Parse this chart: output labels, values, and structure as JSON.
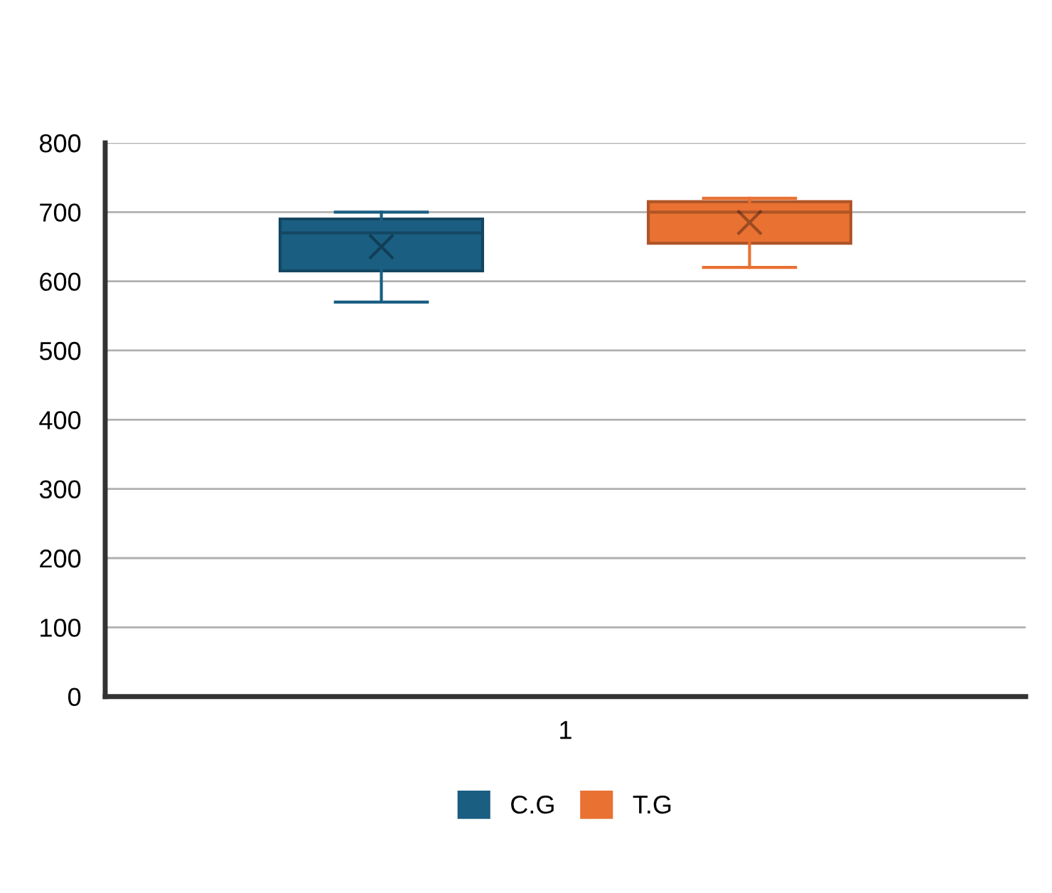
{
  "chart_data": {
    "type": "box",
    "categories": [
      "1"
    ],
    "series": [
      {
        "name": "C.G",
        "color": "#1a5e82",
        "boxes": [
          {
            "low": 570,
            "q1": 615,
            "median": 670,
            "q3": 690,
            "high": 700,
            "mean": 650
          }
        ]
      },
      {
        "name": "T.G",
        "color": "#e97132",
        "boxes": [
          {
            "low": 620,
            "q1": 655,
            "median": 700,
            "q3": 715,
            "high": 720,
            "mean": 685
          }
        ]
      }
    ],
    "ylim": [
      0,
      800
    ],
    "yticks": [
      0,
      100,
      200,
      300,
      400,
      500,
      600,
      700,
      800
    ],
    "grid": "y",
    "legend": "bottom"
  }
}
